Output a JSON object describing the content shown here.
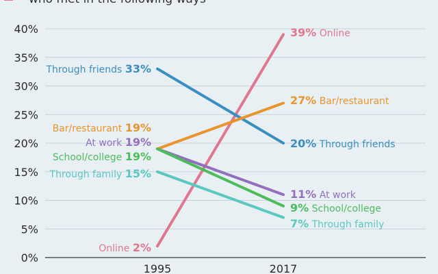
{
  "chart_data": {
    "type": "line",
    "legend_text": "who met in the following ways",
    "legend_color": "#e0768f",
    "x": [
      "1995",
      "2017"
    ],
    "ylim": [
      0,
      40
    ],
    "yticks": [
      0,
      5,
      10,
      15,
      20,
      25,
      30,
      35,
      40
    ],
    "ytick_labels": [
      "0%",
      "5%",
      "10%",
      "15%",
      "20%",
      "25%",
      "30%",
      "35%",
      "40%"
    ],
    "grid": true,
    "series": [
      {
        "name": "Online",
        "values": [
          2,
          39
        ],
        "color": "#e0768f",
        "start_pct": "2%",
        "end_pct": "39%"
      },
      {
        "name": "Through friends",
        "values": [
          33,
          20
        ],
        "color": "#3b8fc0",
        "start_pct": "33%",
        "end_pct": "20%"
      },
      {
        "name": "Bar/restaurant",
        "values": [
          19,
          27
        ],
        "color": "#e8952f",
        "start_pct": "19%",
        "end_pct": "27%"
      },
      {
        "name": "At work",
        "values": [
          19,
          11
        ],
        "color": "#9370bd",
        "start_pct": "19%",
        "end_pct": "11%"
      },
      {
        "name": "School/college",
        "values": [
          19,
          9
        ],
        "color": "#4cbc5c",
        "start_pct": "19%",
        "end_pct": "9%"
      },
      {
        "name": "Through family",
        "values": [
          15,
          7
        ],
        "color": "#5bc8c0",
        "start_pct": "15%",
        "end_pct": "7%"
      }
    ]
  }
}
